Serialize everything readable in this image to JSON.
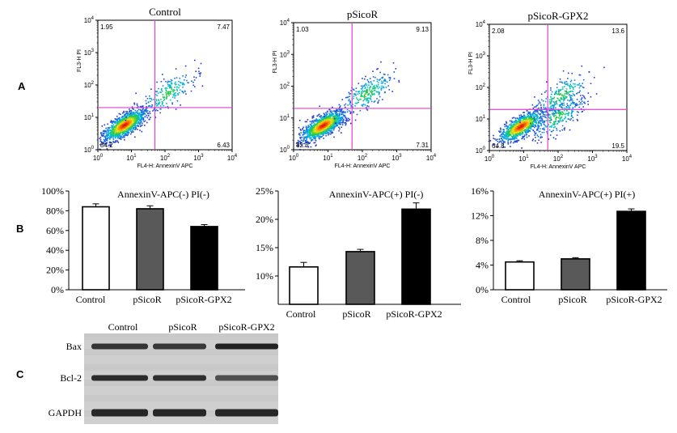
{
  "panels": {
    "a": "A",
    "b": "B",
    "c": "C"
  },
  "chart_data": [
    {
      "type": "scatter",
      "title": "Control",
      "xlabel": "FL4-H: AnnexinV APC",
      "ylabel": "FL3-H PI",
      "xscale": "log",
      "yscale": "log",
      "xlim": [
        1,
        10000
      ],
      "ylim": [
        1,
        10000
      ],
      "tick_labels": [
        "10^0",
        "10^1",
        "10^2",
        "10^3",
        "10^4"
      ],
      "quadrant_gate": {
        "x": 50,
        "y": 20
      },
      "quadrant_percent": {
        "upper_left": "1.95",
        "upper_right": "7.47",
        "lower_left": "84.2",
        "lower_right": "6.43"
      },
      "populations": [
        {
          "x": 6,
          "y": 6,
          "weight": 0.85
        },
        {
          "x": 110,
          "y": 55,
          "weight": 0.15
        }
      ]
    },
    {
      "type": "scatter",
      "title": "pSicoR",
      "xlabel": "FL4-H: AnnexinV APC",
      "ylabel": "FL3-H PI",
      "xscale": "log",
      "yscale": "log",
      "xlim": [
        1,
        10000
      ],
      "ylim": [
        1,
        10000
      ],
      "tick_labels": [
        "10^0",
        "10^1",
        "10^2",
        "10^3",
        "10^4"
      ],
      "quadrant_gate": {
        "x": 50,
        "y": 20
      },
      "quadrant_percent": {
        "upper_left": "1.03",
        "upper_right": "9.13",
        "lower_left": "82.5",
        "lower_right": "7.31"
      },
      "populations": [
        {
          "x": 7,
          "y": 6,
          "weight": 0.82
        },
        {
          "x": 130,
          "y": 60,
          "weight": 0.18
        }
      ]
    },
    {
      "type": "scatter",
      "title": "pSicoR-GPX2",
      "xlabel": "FL4-H: AnnexinV APC",
      "ylabel": "FL3-H PI",
      "xscale": "log",
      "yscale": "log",
      "xlim": [
        1,
        10000
      ],
      "ylim": [
        1,
        10000
      ],
      "tick_labels": [
        "10^0",
        "10^1",
        "10^2",
        "10^3",
        "10^4"
      ],
      "quadrant_gate": {
        "x": 50,
        "y": 20
      },
      "quadrant_percent": {
        "upper_left": "2.08",
        "upper_right": "13.6",
        "lower_left": "64.8",
        "lower_right": "19.5"
      },
      "populations": [
        {
          "x": 8,
          "y": 6,
          "weight": 0.65
        },
        {
          "x": 90,
          "y": 12,
          "weight": 0.2
        },
        {
          "x": 120,
          "y": 60,
          "weight": 0.15
        }
      ]
    },
    {
      "type": "bar",
      "title": "AnnexinV-APC(-) PI(-)",
      "categories": [
        "Control",
        "pSicoR",
        "pSicoR-GPX2"
      ],
      "values": [
        84,
        82,
        64
      ],
      "errors": [
        3,
        3,
        2
      ],
      "ylim": [
        0,
        100
      ],
      "yticks": [
        "0%",
        "20%",
        "40%",
        "60%",
        "80%",
        "100%"
      ],
      "bar_colors": [
        "#ffffff",
        "#595959",
        "#000000"
      ]
    },
    {
      "type": "bar",
      "title": "AnnexinV-APC(+) PI(-)",
      "categories": [
        "Control",
        "pSicoR",
        "pSicoR-GPX2"
      ],
      "values": [
        11.6,
        14.3,
        21.8
      ],
      "errors": [
        0.8,
        0.4,
        1.1
      ],
      "ylim": [
        5,
        25
      ],
      "yticks": [
        "10%",
        "15%",
        "20%",
        "25%"
      ],
      "ytick_values": [
        10,
        15,
        20,
        25
      ],
      "bar_colors": [
        "#ffffff",
        "#595959",
        "#000000"
      ]
    },
    {
      "type": "bar",
      "title": "AnnexinV-APC(+) PI(+)",
      "categories": [
        "Control",
        "pSicoR",
        "pSicoR-GPX2"
      ],
      "values": [
        4.5,
        5.0,
        12.7
      ],
      "errors": [
        0.2,
        0.2,
        0.4
      ],
      "ylim": [
        0,
        16
      ],
      "yticks": [
        "0%",
        "4%",
        "8%",
        "12%",
        "16%"
      ],
      "ytick_values": [
        0,
        4,
        8,
        12,
        16
      ],
      "bar_colors": [
        "#ffffff",
        "#595959",
        "#000000"
      ]
    }
  ],
  "blot": {
    "lanes": [
      "Control",
      "pSicoR",
      "pSicoR-GPX2"
    ],
    "rows": [
      {
        "label": "Bax",
        "intensity": [
          0.75,
          0.7,
          0.95
        ]
      },
      {
        "label": "Bcl-2",
        "intensity": [
          0.85,
          0.8,
          0.45
        ]
      },
      {
        "label": "GAPDH",
        "intensity": [
          0.9,
          0.9,
          0.9
        ]
      }
    ]
  }
}
